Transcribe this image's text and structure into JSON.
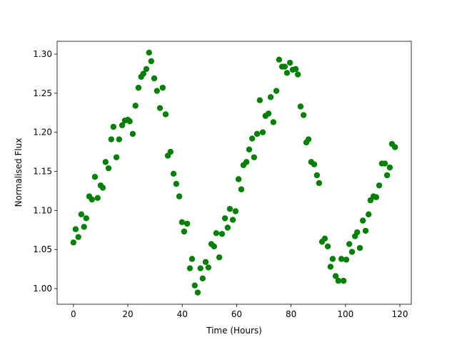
{
  "chart_data": {
    "type": "scatter",
    "x_label": "Time (Hours)",
    "y_label": "Normalised Flux",
    "color": "#008000",
    "xlim": [
      -6,
      124.2
    ],
    "ylim": [
      0.98,
      1.3164
    ],
    "xticks": [
      0,
      20,
      40,
      60,
      80,
      100,
      120
    ],
    "yticks": [
      {
        "value": 1.0,
        "label": "1.00"
      },
      {
        "value": 1.05,
        "label": "1.05"
      },
      {
        "value": 1.1,
        "label": "1.10"
      },
      {
        "value": 1.15,
        "label": "1.15"
      },
      {
        "value": 1.2,
        "label": "1.20"
      },
      {
        "value": 1.25,
        "label": "1.25"
      },
      {
        "value": 1.3,
        "label": "1.30"
      }
    ],
    "x": [
      0,
      0.8,
      1.8,
      2.9,
      3.9,
      4.7,
      5.8,
      6.8,
      7.9,
      8.9,
      10,
      10.8,
      11.8,
      12.9,
      13.9,
      14.7,
      15.8,
      16.8,
      17.9,
      18.9,
      20,
      20.7,
      21.8,
      22.8,
      23.9,
      24.9,
      25.7,
      26.8,
      27.8,
      28.6,
      29.7,
      30.7,
      31.8,
      32.8,
      33.9,
      34.7,
      35.7,
      36.8,
      37.8,
      38.9,
      39.9,
      40.7,
      41.8,
      42.8,
      43.6,
      44.6,
      45.7,
      46.7,
      47.5,
      48.6,
      49.6,
      50.7,
      51.7,
      52.5,
      53.6,
      54.6,
      55.7,
      56.7,
      57.5,
      58.6,
      59.6,
      60.7,
      61.7,
      62.5,
      63.6,
      64.6,
      65.7,
      66.4,
      67.5,
      68.5,
      69.6,
      70.6,
      71.7,
      72.5,
      73.5,
      74.6,
      75.6,
      76.7,
      77.7,
      78.5,
      79.6,
      80.6,
      81.7,
      82.5,
      83.5,
      84.6,
      85.6,
      86.4,
      87.4,
      88.5,
      89.5,
      90.3,
      91.4,
      92.4,
      93.5,
      94.5,
      95.3,
      96.4,
      97.4,
      98.5,
      99.3,
      100.3,
      101.4,
      102.4,
      103.5,
      104.3,
      105.3,
      106.4,
      107.4,
      108.5,
      109.2,
      110.3,
      111.3,
      112.4,
      113.4,
      114.5,
      115.3,
      116.3,
      117.1,
      118.2
    ],
    "values": [
      1.059,
      1.076,
      1.066,
      1.095,
      1.079,
      1.09,
      1.118,
      1.114,
      1.143,
      1.116,
      1.132,
      1.129,
      1.162,
      1.154,
      1.191,
      1.207,
      1.168,
      1.191,
      1.209,
      1.215,
      1.216,
      1.214,
      1.198,
      1.234,
      1.257,
      1.271,
      1.275,
      1.281,
      1.302,
      1.291,
      1.269,
      1.253,
      1.231,
      1.257,
      1.223,
      1.17,
      1.175,
      1.147,
      1.134,
      1.118,
      1.085,
      1.073,
      1.083,
      1.026,
      1.038,
      1.004,
      0.995,
      1.026,
      1.013,
      1.034,
      1.027,
      1.057,
      1.054,
      1.071,
      1.04,
      1.07,
      1.09,
      1.078,
      1.102,
      1.088,
      1.099,
      1.14,
      1.127,
      1.158,
      1.162,
      1.178,
      1.192,
      1.168,
      1.198,
      1.241,
      1.2,
      1.221,
      1.224,
      1.245,
      1.213,
      1.253,
      1.293,
      1.284,
      1.284,
      1.276,
      1.289,
      1.28,
      1.281,
      1.274,
      1.233,
      1.222,
      1.187,
      1.191,
      1.162,
      1.159,
      1.145,
      1.135,
      1.06,
      1.064,
      1.054,
      1.028,
      1.038,
      1.016,
      1.01,
      1.038,
      1.01,
      1.037,
      1.057,
      1.047,
      1.067,
      1.072,
      1.052,
      1.087,
      1.074,
      1.095,
      1.113,
      1.118,
      1.117,
      1.132,
      1.16,
      1.16,
      1.145,
      1.155,
      1.185,
      1.181
    ]
  }
}
